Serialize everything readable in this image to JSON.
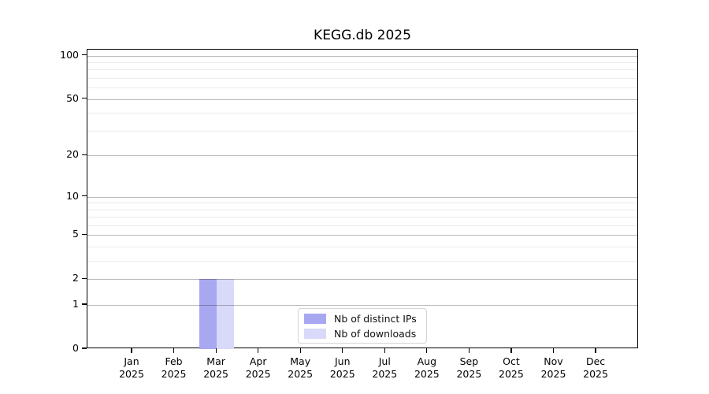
{
  "title": "KEGG.db 2025",
  "colors": {
    "ips_bar": "#a8a8f2",
    "downloads_bar": "#d9d9f9",
    "grid_major": "rgba(0,0,0,0.27)",
    "grid_minor": "rgba(0,0,0,0.08)",
    "axis": "#000000",
    "legend_border": "#d4d4d4",
    "background": "#ffffff"
  },
  "chart_data": {
    "type": "bar",
    "title": "KEGG.db 2025",
    "scale": "log1p",
    "categories": [
      "Jan",
      "Feb",
      "Mar",
      "Apr",
      "May",
      "Jun",
      "Jul",
      "Aug",
      "Sep",
      "Oct",
      "Nov",
      "Dec"
    ],
    "year_label": "2025",
    "series": [
      {
        "name": "Nb of distinct IPs",
        "color": "#a8a8f2",
        "values": [
          0,
          0,
          2,
          0,
          0,
          0,
          0,
          0,
          0,
          0,
          0,
          0
        ]
      },
      {
        "name": "Nb of downloads",
        "color": "#d9d9f9",
        "values": [
          0,
          0,
          2,
          0,
          0,
          0,
          0,
          0,
          0,
          0,
          0,
          0
        ]
      }
    ],
    "y_ticks": [
      0,
      1,
      2,
      5,
      10,
      20,
      50,
      100
    ],
    "y_minor_ticks": [
      3,
      4,
      6,
      7,
      8,
      9,
      30,
      40,
      60,
      70,
      80,
      90
    ],
    "ylim": [
      0,
      110
    ],
    "grid": "horizontal",
    "legend": {
      "position": "inside-bottom-center",
      "entries": [
        "Nb of distinct IPs",
        "Nb of downloads"
      ]
    }
  }
}
